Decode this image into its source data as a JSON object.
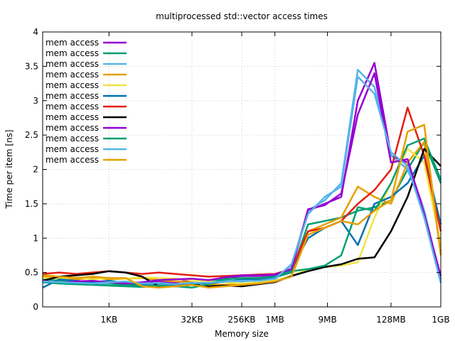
{
  "chart_data": {
    "type": "line",
    "title": "multiprocessed std::vector access times",
    "xlabel": "Memory size",
    "ylabel": "Time per item [ns]",
    "x_scale": "log2",
    "x_unit": "bytes",
    "xlim": [
      64,
      1073741824
    ],
    "ylim": [
      0,
      4
    ],
    "x_ticks": [
      {
        "value": 1024,
        "label": "1KB"
      },
      {
        "value": 32768,
        "label": "32KB"
      },
      {
        "value": 262144,
        "label": "256KB"
      },
      {
        "value": 1048576,
        "label": "1MB"
      },
      {
        "value": 9437184,
        "label": "9MB"
      },
      {
        "value": 134217728,
        "label": "128MB"
      },
      {
        "value": 1073741824,
        "label": "1GB"
      }
    ],
    "y_ticks": [
      0,
      0.5,
      1,
      1.5,
      2,
      2.5,
      3,
      3.5,
      4
    ],
    "y_tick_labels": [
      "0",
      "0.5",
      "1",
      "1.5",
      "2",
      "2.5",
      "3",
      "3.5",
      "4"
    ],
    "grid": true,
    "legend_position": "top-left",
    "x": [
      64,
      128,
      256,
      512,
      1024,
      2048,
      4096,
      8192,
      16384,
      32768,
      65536,
      131072,
      262144,
      524288,
      1048576,
      2097152,
      4194304,
      8388608,
      16777216,
      33554432,
      67108864,
      134217728,
      268435456,
      536870912,
      1073741824
    ],
    "series": [
      {
        "name": "mem access",
        "color": "#9400d3",
        "values": [
          0.36,
          0.35,
          0.38,
          0.36,
          0.35,
          0.33,
          0.35,
          0.37,
          0.35,
          0.4,
          0.38,
          0.42,
          0.45,
          0.45,
          0.46,
          0.55,
          1.4,
          1.5,
          1.6,
          3.0,
          3.55,
          2.2,
          2.1,
          1.4,
          0.4
        ]
      },
      {
        "name": "mem access",
        "color": "#009e73",
        "values": [
          0.4,
          0.38,
          0.36,
          0.34,
          0.34,
          0.32,
          0.31,
          0.33,
          0.3,
          0.32,
          0.36,
          0.42,
          0.4,
          0.41,
          0.43,
          0.5,
          1.2,
          1.25,
          1.3,
          1.4,
          1.45,
          1.55,
          2.0,
          2.4,
          1.8
        ]
      },
      {
        "name": "mem access",
        "color": "#56b4e9",
        "values": [
          0.38,
          0.36,
          0.34,
          0.33,
          0.35,
          0.36,
          0.33,
          0.34,
          0.32,
          0.34,
          0.36,
          0.38,
          0.37,
          0.39,
          0.4,
          0.6,
          1.4,
          1.55,
          1.8,
          3.45,
          3.2,
          2.2,
          2.0,
          1.4,
          0.4
        ]
      },
      {
        "name": "mem access",
        "color": "#e69f00",
        "values": [
          0.44,
          0.42,
          0.4,
          0.42,
          0.4,
          0.41,
          0.42,
          0.39,
          0.37,
          0.36,
          0.33,
          0.32,
          0.34,
          0.35,
          0.38,
          0.45,
          1.1,
          1.2,
          1.3,
          1.75,
          1.6,
          1.5,
          2.1,
          2.4,
          0.8
        ]
      },
      {
        "name": "mem access",
        "color": "#f0e442",
        "values": [
          0.42,
          0.41,
          0.43,
          0.4,
          0.42,
          0.41,
          0.43,
          0.42,
          0.41,
          0.39,
          0.37,
          0.36,
          0.34,
          0.36,
          0.38,
          0.45,
          0.55,
          0.58,
          0.6,
          0.65,
          1.3,
          1.8,
          2.3,
          2.1,
          0.9
        ]
      },
      {
        "name": "mem access",
        "color": "#0072b2",
        "values": [
          0.28,
          0.4,
          0.38,
          0.36,
          0.38,
          0.35,
          0.33,
          0.35,
          0.32,
          0.35,
          0.34,
          0.37,
          0.39,
          0.4,
          0.42,
          0.55,
          1.0,
          1.15,
          1.25,
          0.9,
          1.5,
          1.6,
          1.8,
          2.2,
          1.2
        ]
      },
      {
        "name": "mem access",
        "color": "#e51e10",
        "values": [
          0.48,
          0.5,
          0.48,
          0.5,
          0.52,
          0.5,
          0.48,
          0.5,
          0.48,
          0.46,
          0.44,
          0.45,
          0.46,
          0.47,
          0.48,
          0.55,
          1.1,
          1.15,
          1.25,
          1.5,
          1.7,
          2.0,
          2.9,
          2.2,
          1.1
        ]
      },
      {
        "name": "mem access",
        "color": "#000000",
        "values": [
          0.38,
          0.44,
          0.46,
          0.48,
          0.52,
          0.5,
          0.44,
          0.3,
          0.3,
          0.32,
          0.3,
          0.31,
          0.3,
          0.33,
          0.36,
          0.45,
          0.52,
          0.58,
          0.62,
          0.7,
          0.72,
          1.1,
          1.6,
          2.3,
          2.05
        ]
      },
      {
        "name": "mem access",
        "color": "#9400d3",
        "values": [
          0.38,
          0.35,
          0.37,
          0.38,
          0.36,
          0.34,
          0.36,
          0.39,
          0.4,
          0.41,
          0.39,
          0.43,
          0.46,
          0.46,
          0.47,
          0.55,
          1.42,
          1.48,
          1.65,
          2.8,
          3.4,
          2.1,
          2.15,
          1.35,
          0.45
        ]
      },
      {
        "name": "mem access",
        "color": "#009e73",
        "values": [
          0.36,
          0.34,
          0.33,
          0.32,
          0.31,
          0.3,
          0.29,
          0.31,
          0.3,
          0.28,
          0.33,
          0.4,
          0.42,
          0.42,
          0.44,
          0.52,
          0.55,
          0.6,
          0.75,
          1.45,
          1.4,
          1.8,
          2.35,
          2.45,
          1.85
        ]
      },
      {
        "name": "mem access",
        "color": "#56b4e9",
        "values": [
          0.37,
          0.36,
          0.35,
          0.34,
          0.36,
          0.37,
          0.34,
          0.35,
          0.33,
          0.35,
          0.35,
          0.37,
          0.38,
          0.38,
          0.41,
          0.62,
          1.35,
          1.6,
          1.75,
          3.35,
          3.1,
          2.25,
          2.05,
          1.3,
          0.35
        ]
      },
      {
        "name": "mem access",
        "color": "#e69f00",
        "values": [
          0.46,
          0.44,
          0.42,
          0.44,
          0.42,
          0.42,
          0.3,
          0.28,
          0.3,
          0.32,
          0.28,
          0.3,
          0.32,
          0.34,
          0.37,
          0.44,
          1.05,
          1.15,
          1.25,
          1.2,
          1.4,
          1.55,
          2.55,
          2.65,
          0.75
        ]
      }
    ]
  }
}
